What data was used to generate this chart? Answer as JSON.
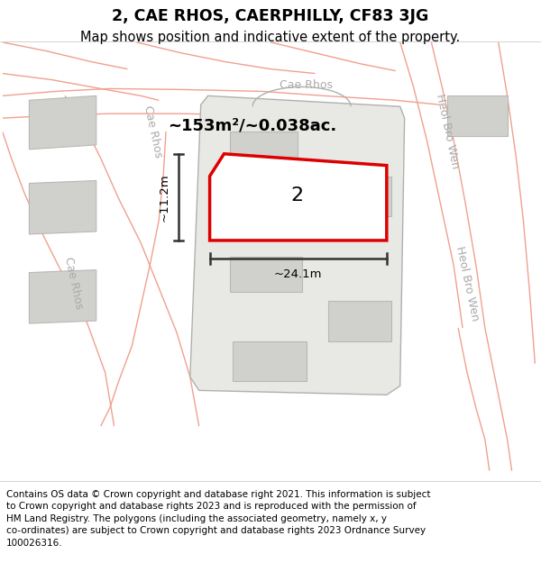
{
  "title": "2, CAE RHOS, CAERPHILLY, CF83 3JG",
  "subtitle": "Map shows position and indicative extent of the property.",
  "footer": "Contains OS data © Crown copyright and database right 2021. This information is subject\nto Crown copyright and database rights 2023 and is reproduced with the permission of\nHM Land Registry. The polygons (including the associated geometry, namely x, y\nco-ordinates) are subject to Crown copyright and database rights 2023 Ordnance Survey\n100026316.",
  "road_line_color": "#f0a090",
  "road_line_lw": 1.0,
  "parcel_edge_color": "#b0b0ae",
  "parcel_fill_color": "#e8e8e5",
  "building_fill": "#d0d0cc",
  "building_edge": "#b8b8b4",
  "prop_fill": "#ffffff",
  "prop_edge": "#dd0000",
  "prop_lw": 2.5,
  "dim_color": "#333333",
  "street_color": "#aaaaaa",
  "area_label": "~153m²/~0.038ac.",
  "number_label": "2",
  "width_label": "~24.1m",
  "height_label": "~11.2m",
  "figsize": [
    6.0,
    6.25
  ],
  "dpi": 100,
  "title_fontsize": 12.5,
  "subtitle_fontsize": 10.5,
  "footer_fontsize": 7.5
}
